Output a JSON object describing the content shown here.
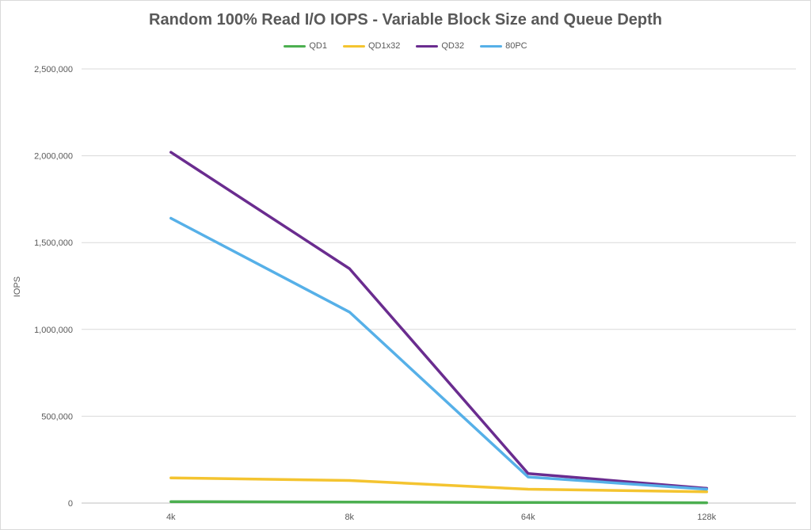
{
  "chart_data": {
    "type": "line",
    "title": "Random 100% Read I/O IOPS - Variable Block Size and Queue Depth",
    "xlabel": "",
    "ylabel": "IOPS",
    "categories": [
      "4k",
      "8k",
      "64k",
      "128k"
    ],
    "ylim": [
      0,
      2500000
    ],
    "yticks": [
      0,
      500000,
      1000000,
      1500000,
      2000000,
      2500000
    ],
    "ytick_labels": [
      "0",
      "500,000",
      "1,000,000",
      "1,500,000",
      "2,000,000",
      "2,500,000"
    ],
    "grid": true,
    "legend_position": "top",
    "series": [
      {
        "name": "QD1",
        "color": "#4CAF50",
        "values": [
          8000,
          6000,
          3000,
          2000
        ]
      },
      {
        "name": "QD1x32",
        "color": "#F4C430",
        "values": [
          145000,
          130000,
          80000,
          65000
        ]
      },
      {
        "name": "QD32",
        "color": "#6A2C8F",
        "values": [
          2020000,
          1350000,
          170000,
          85000
        ]
      },
      {
        "name": "80PC",
        "color": "#56B0E8",
        "values": [
          1640000,
          1100000,
          150000,
          80000
        ]
      }
    ]
  }
}
